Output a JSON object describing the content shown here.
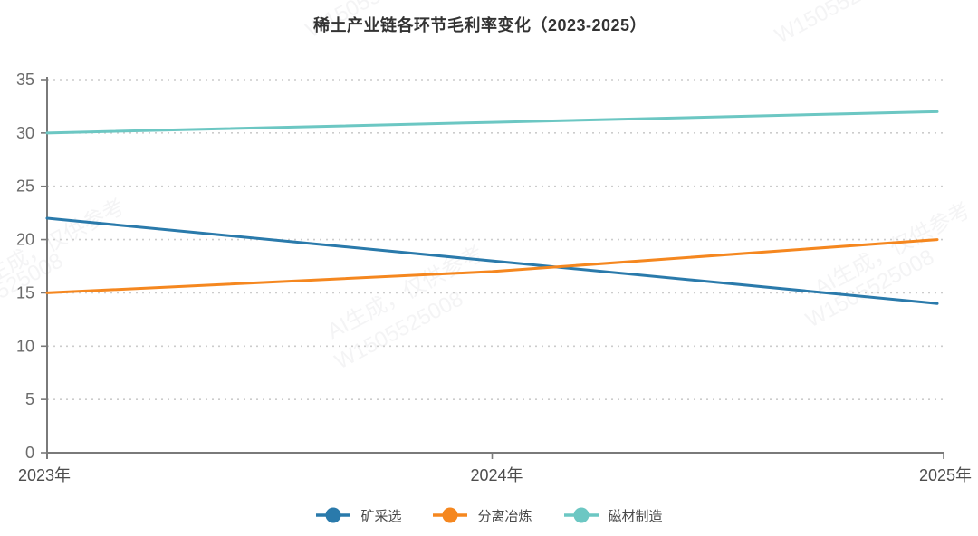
{
  "title": "稀土产业链各环节毛利率变化（2023-2025）",
  "chart_data": {
    "type": "line",
    "title": "稀土产业链各环节毛利率变化（2023-2025）",
    "categories": [
      "2023年",
      "2024年",
      "2025年"
    ],
    "series": [
      {
        "name": "矿采选",
        "color": "#2a7aab",
        "values": [
          22,
          18,
          14
        ]
      },
      {
        "name": "分离冶炼",
        "color": "#f5871f",
        "values": [
          15,
          17,
          20
        ]
      },
      {
        "name": "磁材制造",
        "color": "#6cc7c3",
        "values": [
          30,
          31,
          32
        ]
      }
    ],
    "xlabel": "",
    "ylabel": "",
    "ylim": [
      0,
      35
    ],
    "ytick_step": 5,
    "yticks": [
      0,
      5,
      10,
      15,
      20,
      25,
      30,
      35
    ],
    "grid": "dotted-horizontal",
    "legend_position": "bottom"
  },
  "watermark": {
    "line1": "AI生成，仅供参考",
    "line2": "W1505525008"
  },
  "colors": {
    "background": "#ffffff",
    "axis": "#7a7a7a",
    "grid": "#cccccc",
    "title": "#333333",
    "y_label": "#6b6b6b",
    "x_label": "#4d4d4d",
    "legend_text": "#4a4a4a"
  }
}
